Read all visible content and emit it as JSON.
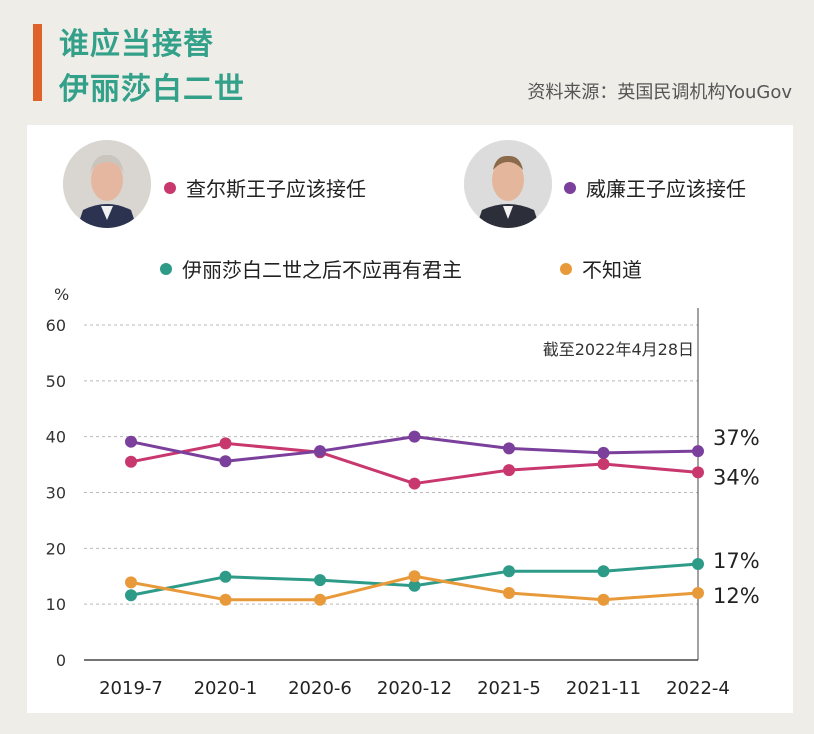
{
  "header": {
    "title_line1": "谁应当接替",
    "title_line2": "伊丽莎白二世",
    "source": "资料来源：英国民调机构YouGov"
  },
  "colors": {
    "accent_bar": "#e0622b",
    "title": "#33a18a",
    "charles": "#c8386e",
    "william": "#7b3f9c",
    "no_monarch": "#2e9b88",
    "dont_know": "#e89a3a"
  },
  "legend": {
    "charles": "查尔斯王子应该接任",
    "william": "威廉王子应该接任",
    "no_monarch": "伊丽莎白二世之后不应再有君主",
    "dont_know": "不知道"
  },
  "chart_data": {
    "type": "line",
    "ylabel": "%",
    "ylim": [
      0,
      60
    ],
    "yticks": [
      0,
      10,
      20,
      30,
      40,
      50,
      60
    ],
    "categories": [
      "2019-7",
      "2020-1",
      "2020-6",
      "2020-12",
      "2021-5",
      "2021-11",
      "2022-4"
    ],
    "annotation": "截至2022年4月28日",
    "grid": true,
    "series": [
      {
        "name": "查尔斯王子应该接任",
        "key": "charles",
        "values": [
          35.5,
          38.8,
          37.2,
          31.6,
          34.0,
          35.1,
          33.6
        ],
        "end_label": "34%"
      },
      {
        "name": "威廉王子应该接任",
        "key": "william",
        "values": [
          39.1,
          35.6,
          37.4,
          40.0,
          37.9,
          37.1,
          37.4
        ],
        "end_label": "37%"
      },
      {
        "name": "伊丽莎白二世之后不应再有君主",
        "key": "no_monarch",
        "values": [
          11.6,
          14.9,
          14.3,
          13.3,
          15.9,
          15.9,
          17.2
        ],
        "end_label": "17%"
      },
      {
        "name": "不知道",
        "key": "dont_know",
        "values": [
          13.9,
          10.8,
          10.8,
          15.0,
          12.0,
          10.8,
          12.0
        ],
        "end_label": "12%"
      }
    ]
  }
}
